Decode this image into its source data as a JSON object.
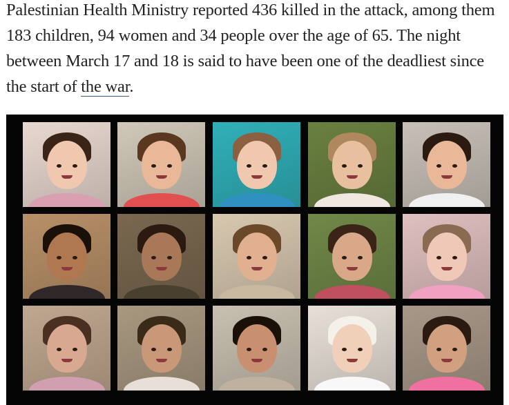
{
  "article": {
    "paragraph_text": "Palestinian Health Ministry reported 436 killed in the attack, among them 183 children, 94 women and 34 people over the age of 65. The night between March 17 and 18 is said to have been one of the deadliest since the start of ",
    "link_text": "the war",
    "paragraph_end": "."
  },
  "photo_grid": {
    "background": "#050505",
    "cells": [
      {
        "bg": "#e8d8d0",
        "skin": "#f0c8b0",
        "hair": "#3a2418",
        "shirt": "#d8a0b0"
      },
      {
        "bg": "#d0c8b8",
        "skin": "#e8b898",
        "hair": "#5a3820",
        "shirt": "#e05050"
      },
      {
        "bg": "#30b0b8",
        "skin": "#f0c8b0",
        "hair": "#8a6040",
        "shirt": "#3090c0"
      },
      {
        "bg": "#6a8040",
        "skin": "#e8c0a0",
        "hair": "#b08860",
        "shirt": "#f0e8e0"
      },
      {
        "bg": "#c8c0b8",
        "skin": "#e8b898",
        "hair": "#2a1a10",
        "shirt": "#f0f0f0"
      },
      {
        "bg": "#b89068",
        "skin": "#b07850",
        "hair": "#1a1008",
        "shirt": "#302828"
      },
      {
        "bg": "#7a6850",
        "skin": "#a87858",
        "hair": "#2a1a10",
        "shirt": "#4a4030"
      },
      {
        "bg": "#d8c8b0",
        "skin": "#e0b090",
        "hair": "#6a4828",
        "shirt": "#c8b8a0"
      },
      {
        "bg": "#708848",
        "skin": "#d8a888",
        "hair": "#3a2418",
        "shirt": "#c05060"
      },
      {
        "bg": "#e0c0c0",
        "skin": "#f0c8b8",
        "hair": "#8a6a50",
        "shirt": "#f0a0c0"
      },
      {
        "bg": "#c0a890",
        "skin": "#d8a890",
        "hair": "#4a3020",
        "shirt": "#d0a0b0"
      },
      {
        "bg": "#a89880",
        "skin": "#c89878",
        "hair": "#3a2a18",
        "shirt": "#e8e0d8"
      },
      {
        "bg": "#c8c0b0",
        "skin": "#c89070",
        "hair": "#1a1008",
        "shirt": "#c0b0a0"
      },
      {
        "bg": "#e8e0d8",
        "skin": "#f0d0b8",
        "hair": "#f4f0ea",
        "shirt": "#f8f8f8"
      },
      {
        "bg": "#a89888",
        "skin": "#d0a080",
        "hair": "#2a1a10",
        "shirt": "#f070a0"
      }
    ]
  }
}
